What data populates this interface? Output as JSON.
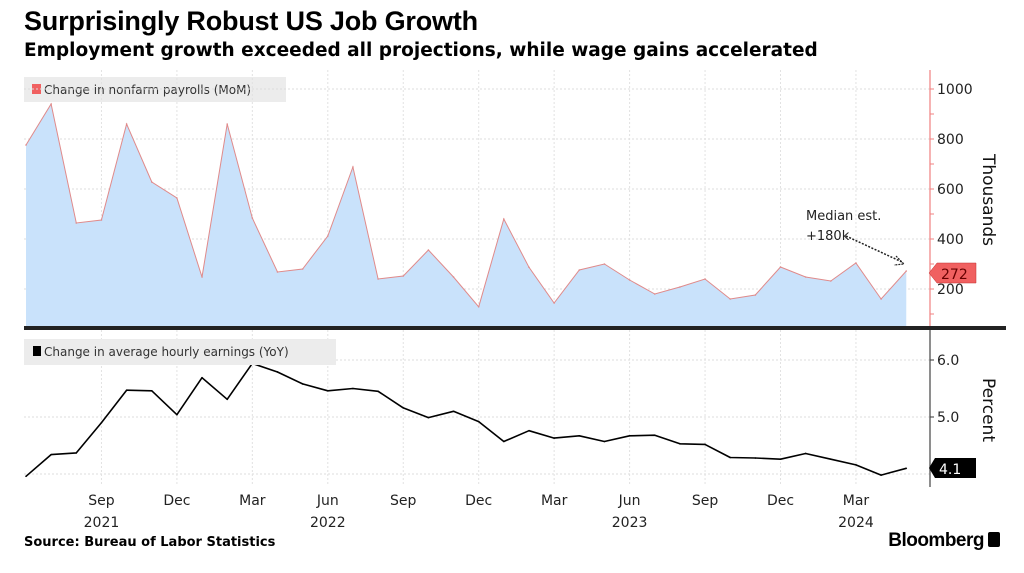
{
  "header": {
    "title": "Surprisingly Robust US Job Growth",
    "subtitle": "Employment growth exceeded all projections, while wage gains accelerated"
  },
  "footer": {
    "source": "Source: Bureau of Labor Statistics",
    "brand": "Bloomberg"
  },
  "colors": {
    "payrolls_fill": "#c9e2fb",
    "payrolls_line": "#e08a8a",
    "payrolls_marker": "#f06060",
    "earnings_line": "#000000",
    "axis_top": "#f08080"
  },
  "chart_data": [
    {
      "type": "area",
      "legend": "Change in nonfarm payrolls (MoM)",
      "ylabel": "Thousands",
      "ylim": [
        0,
        1050
      ],
      "yticks": [
        200,
        400,
        600,
        800,
        1000
      ],
      "x": [
        "Jun 2021",
        "Jul 2021",
        "Aug 2021",
        "Sep 2021",
        "Oct 2021",
        "Nov 2021",
        "Dec 2021",
        "Jan 2022",
        "Feb 2022",
        "Mar 2022",
        "Apr 2022",
        "May 2022",
        "Jun 2022",
        "Jul 2022",
        "Aug 2022",
        "Sep 2022",
        "Oct 2022",
        "Nov 2022",
        "Dec 2022",
        "Jan 2023",
        "Feb 2023",
        "Mar 2023",
        "Apr 2023",
        "May 2023",
        "Jun 2023",
        "Jul 2023",
        "Aug 2023",
        "Sep 2023",
        "Oct 2023",
        "Nov 2023",
        "Dec 2023",
        "Jan 2024",
        "Feb 2024",
        "Mar 2024",
        "Apr 2024",
        "May 2024"
      ],
      "values": [
        776,
        940,
        464,
        476,
        860,
        628,
        564,
        248,
        860,
        484,
        268,
        280,
        412,
        688,
        240,
        252,
        356,
        248,
        129,
        480,
        287,
        144,
        276,
        300,
        236,
        180,
        208,
        240,
        160,
        176,
        288,
        248,
        232,
        304,
        160,
        272
      ],
      "last_value_label": "272",
      "annotation": {
        "line1": "Median est.",
        "line2": "+180k"
      },
      "grid": true
    },
    {
      "type": "line",
      "legend": "Change in average hourly earnings (YoY)",
      "ylabel": "Percent",
      "ylim": [
        3.8,
        6.4
      ],
      "yticks": [
        5.0,
        6.0
      ],
      "ytick_labels": [
        "5.0",
        "6.0"
      ],
      "values": [
        3.96,
        4.34,
        4.37,
        4.9,
        5.47,
        5.46,
        5.04,
        5.69,
        5.31,
        5.94,
        5.79,
        5.58,
        5.46,
        5.5,
        5.45,
        5.16,
        4.99,
        5.1,
        4.92,
        4.57,
        4.76,
        4.63,
        4.67,
        4.57,
        4.67,
        4.68,
        4.53,
        4.52,
        4.29,
        4.28,
        4.26,
        4.36,
        4.26,
        4.16,
        3.98,
        4.1
      ],
      "last_value_label": "4.1",
      "grid": true
    }
  ],
  "xaxis": {
    "ticks": [
      {
        "month": "Sep",
        "year": "2021",
        "index": 3
      },
      {
        "month": "Dec",
        "year": "",
        "index": 6
      },
      {
        "month": "Mar",
        "year": "",
        "index": 9
      },
      {
        "month": "Jun",
        "year": "2022",
        "index": 12
      },
      {
        "month": "Sep",
        "year": "",
        "index": 15
      },
      {
        "month": "Dec",
        "year": "",
        "index": 18
      },
      {
        "month": "Mar",
        "year": "",
        "index": 21
      },
      {
        "month": "Jun",
        "year": "2023",
        "index": 24
      },
      {
        "month": "Sep",
        "year": "",
        "index": 27
      },
      {
        "month": "Dec",
        "year": "",
        "index": 30
      },
      {
        "month": "Mar",
        "year": "2024",
        "index": 33
      }
    ]
  }
}
